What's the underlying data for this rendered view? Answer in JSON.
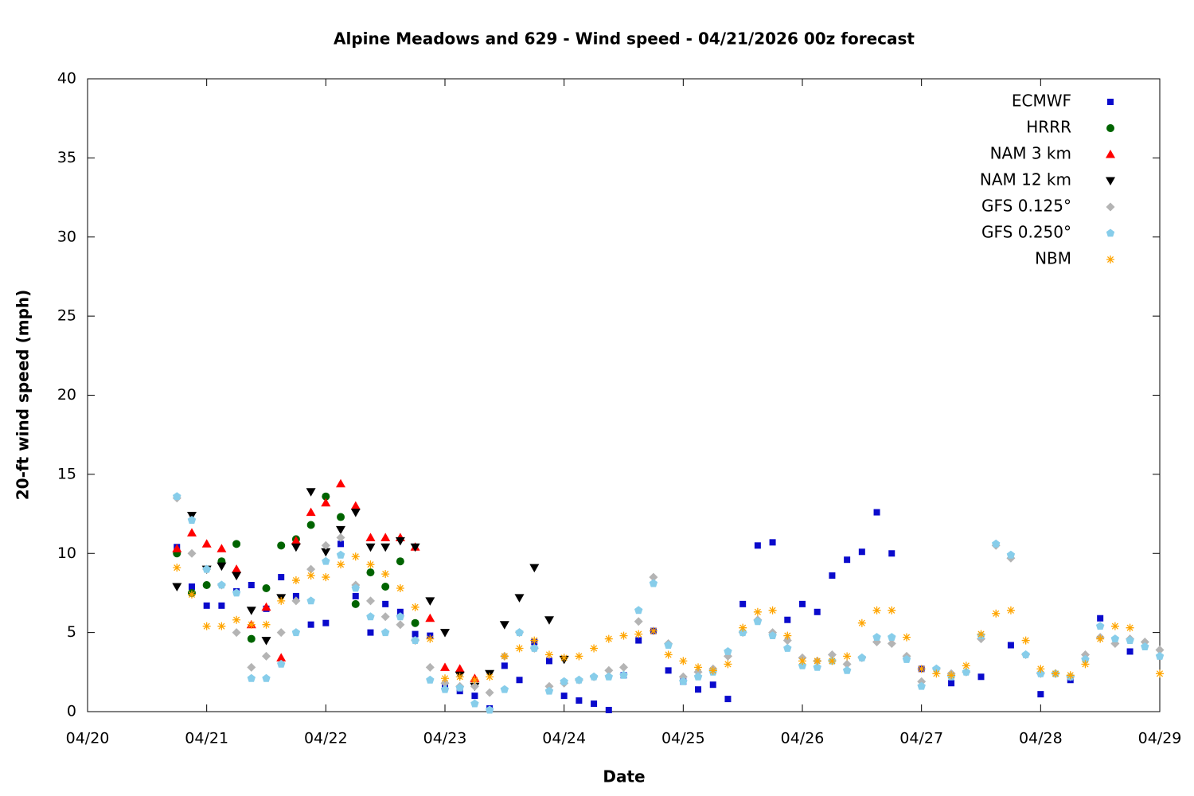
{
  "chart_data": {
    "type": "scatter",
    "title": "Alpine Meadows and 629 - Wind speed - 04/21/2026 00z forecast",
    "x_label": "Date",
    "y_label": "20-ft wind speed (mph)",
    "xlim": [
      "04/20",
      "04/29"
    ],
    "xticks": [
      "04/20",
      "04/21",
      "04/22",
      "04/23",
      "04/24",
      "04/25",
      "04/26",
      "04/27",
      "04/28",
      "04/29"
    ],
    "ylim": [
      0,
      40
    ],
    "yticks": [
      0,
      5,
      10,
      15,
      20,
      25,
      30,
      35,
      40
    ],
    "grid": false,
    "legend": "top-right",
    "series": [
      {
        "name": "ECMWF",
        "color": "#0a0acc",
        "marker": "square",
        "x": [
          "04/20 18:00",
          "04/20 21:00",
          "04/21 00:00",
          "04/21 03:00",
          "04/21 06:00",
          "04/21 09:00",
          "04/21 12:00",
          "04/21 15:00",
          "04/21 18:00",
          "04/21 21:00",
          "04/22 00:00",
          "04/22 03:00",
          "04/22 06:00",
          "04/22 09:00",
          "04/22 12:00",
          "04/22 15:00",
          "04/22 18:00",
          "04/22 21:00",
          "04/23 00:00",
          "04/23 03:00",
          "04/23 06:00",
          "04/23 09:00",
          "04/23 12:00",
          "04/23 15:00",
          "04/23 18:00",
          "04/23 21:00",
          "04/24 00:00",
          "04/24 03:00",
          "04/24 06:00",
          "04/24 09:00",
          "04/24 12:00",
          "04/24 15:00",
          "04/24 18:00",
          "04/24 21:00",
          "04/25 00:00",
          "04/25 03:00",
          "04/25 06:00",
          "04/25 09:00",
          "04/25 12:00",
          "04/25 15:00",
          "04/25 18:00",
          "04/25 21:00",
          "04/26 00:00",
          "04/26 03:00",
          "04/26 06:00",
          "04/26 09:00",
          "04/26 12:00",
          "04/26 15:00",
          "04/26 18:00",
          "04/27 00:00",
          "04/27 06:00",
          "04/27 12:00",
          "04/27 18:00",
          "04/28 00:00",
          "04/28 06:00",
          "04/28 12:00",
          "04/28 18:00"
        ],
        "values": [
          10.4,
          7.9,
          6.7,
          6.7,
          7.6,
          8.0,
          6.5,
          8.5,
          7.3,
          5.5,
          5.6,
          10.6,
          7.3,
          5.0,
          6.8,
          6.3,
          4.9,
          4.8,
          1.6,
          1.3,
          1.0,
          0.2,
          2.9,
          2.0,
          4.4,
          3.2,
          1.0,
          0.7,
          0.5,
          0.1,
          2.3,
          4.5,
          5.1,
          2.6,
          1.9,
          1.4,
          1.7,
          0.8,
          6.8,
          10.5,
          10.7,
          5.8,
          6.8,
          6.3,
          8.6,
          9.6,
          10.1,
          12.6,
          10.0,
          2.7,
          1.8,
          2.2,
          4.2,
          1.1,
          2.0,
          5.9,
          3.8
        ]
      },
      {
        "name": "HRRR",
        "color": "#006400",
        "marker": "circle",
        "x": [
          "04/20 18:00",
          "04/20 21:00",
          "04/21 00:00",
          "04/21 03:00",
          "04/21 06:00",
          "04/21 09:00",
          "04/21 12:00",
          "04/21 15:00",
          "04/21 18:00",
          "04/21 21:00",
          "04/22 00:00",
          "04/22 03:00",
          "04/22 06:00",
          "04/22 09:00",
          "04/22 12:00",
          "04/22 15:00",
          "04/22 18:00"
        ],
        "values": [
          10.0,
          7.5,
          8.0,
          9.5,
          10.6,
          4.6,
          7.8,
          10.5,
          10.9,
          11.8,
          13.6,
          12.3,
          6.8,
          8.8,
          7.9,
          9.5,
          5.6
        ]
      },
      {
        "name": "NAM 3 km",
        "color": "#ff0000",
        "marker": "triangle-up",
        "x": [
          "04/20 18:00",
          "04/20 21:00",
          "04/21 00:00",
          "04/21 03:00",
          "04/21 06:00",
          "04/21 09:00",
          "04/21 12:00",
          "04/21 15:00",
          "04/21 18:00",
          "04/21 21:00",
          "04/22 00:00",
          "04/22 03:00",
          "04/22 06:00",
          "04/22 09:00",
          "04/22 12:00",
          "04/22 15:00",
          "04/22 18:00",
          "04/22 21:00",
          "04/23 00:00",
          "04/23 03:00",
          "04/23 06:00"
        ],
        "values": [
          10.3,
          11.3,
          10.6,
          10.3,
          9.0,
          5.5,
          6.6,
          3.4,
          10.8,
          12.6,
          13.2,
          14.4,
          13.0,
          11.0,
          11.0,
          11.0,
          10.4,
          5.9,
          2.8,
          2.7,
          2.1
        ]
      },
      {
        "name": "NAM 12 km",
        "color": "#000000",
        "marker": "triangle-down",
        "x": [
          "04/20 18:00",
          "04/20 21:00",
          "04/21 00:00",
          "04/21 03:00",
          "04/21 06:00",
          "04/21 09:00",
          "04/21 12:00",
          "04/21 15:00",
          "04/21 18:00",
          "04/21 21:00",
          "04/22 00:00",
          "04/22 03:00",
          "04/22 06:00",
          "04/22 09:00",
          "04/22 12:00",
          "04/22 15:00",
          "04/22 18:00",
          "04/22 21:00",
          "04/23 00:00",
          "04/23 03:00",
          "04/23 06:00",
          "04/23 09:00",
          "04/23 12:00",
          "04/23 15:00",
          "04/23 18:00",
          "04/23 21:00",
          "04/24 00:00"
        ],
        "values": [
          7.9,
          12.4,
          9.0,
          9.2,
          8.6,
          6.4,
          4.5,
          7.2,
          10.4,
          13.9,
          10.1,
          11.5,
          12.6,
          10.4,
          10.4,
          10.8,
          10.4,
          7.0,
          5.0,
          2.3,
          1.6,
          2.4,
          5.5,
          7.2,
          9.1,
          5.8,
          3.3
        ]
      },
      {
        "name": "GFS 0.125°",
        "color": "#b4b4b4",
        "marker": "diamond",
        "x": [
          "04/20 18:00",
          "04/20 21:00",
          "04/21 00:00",
          "04/21 03:00",
          "04/21 06:00",
          "04/21 09:00",
          "04/21 12:00",
          "04/21 15:00",
          "04/21 18:00",
          "04/21 21:00",
          "04/22 00:00",
          "04/22 03:00",
          "04/22 06:00",
          "04/22 09:00",
          "04/22 12:00",
          "04/22 15:00",
          "04/22 18:00",
          "04/22 21:00",
          "04/23 00:00",
          "04/23 03:00",
          "04/23 06:00",
          "04/23 09:00",
          "04/23 12:00",
          "04/23 15:00",
          "04/23 18:00",
          "04/23 21:00",
          "04/24 00:00",
          "04/24 03:00",
          "04/24 06:00",
          "04/24 09:00",
          "04/24 12:00",
          "04/24 15:00",
          "04/24 18:00",
          "04/24 21:00",
          "04/25 00:00",
          "04/25 03:00",
          "04/25 06:00",
          "04/25 09:00",
          "04/25 12:00",
          "04/25 15:00",
          "04/25 18:00",
          "04/25 21:00",
          "04/26 00:00",
          "04/26 03:00",
          "04/26 06:00",
          "04/26 09:00",
          "04/26 12:00",
          "04/26 15:00",
          "04/26 18:00",
          "04/26 21:00",
          "04/27 00:00",
          "04/27 03:00",
          "04/27 06:00",
          "04/27 09:00",
          "04/27 12:00",
          "04/27 15:00",
          "04/27 18:00",
          "04/27 21:00",
          "04/28 00:00",
          "04/28 03:00",
          "04/28 06:00",
          "04/28 09:00",
          "04/28 12:00",
          "04/28 15:00",
          "04/28 18:00",
          "04/28 21:00",
          "04/29 00:00"
        ],
        "values": [
          13.5,
          10.0,
          9.0,
          8.0,
          5.0,
          2.8,
          3.5,
          5.0,
          7.0,
          9.0,
          10.5,
          11.0,
          8.0,
          7.0,
          6.0,
          5.5,
          4.5,
          2.8,
          1.8,
          1.6,
          1.6,
          1.2,
          3.5,
          5.0,
          4.0,
          1.6,
          1.8,
          2.0,
          2.2,
          2.6,
          2.8,
          5.7,
          8.5,
          4.3,
          2.2,
          2.5,
          2.7,
          3.5,
          5.0,
          5.8,
          5.0,
          4.5,
          3.4,
          3.2,
          3.6,
          3.0,
          3.4,
          4.4,
          4.3,
          3.5,
          1.9,
          2.7,
          2.4,
          2.5,
          4.6,
          10.5,
          9.7,
          3.6,
          2.4,
          2.4,
          2.2,
          3.6,
          4.7,
          4.3,
          4.6,
          4.4,
          3.9
        ]
      },
      {
        "name": "GFS 0.250°",
        "color": "#87cdea",
        "marker": "pentagon",
        "x": [
          "04/20 18:00",
          "04/20 21:00",
          "04/21 00:00",
          "04/21 03:00",
          "04/21 06:00",
          "04/21 09:00",
          "04/21 12:00",
          "04/21 15:00",
          "04/21 18:00",
          "04/21 21:00",
          "04/22 00:00",
          "04/22 03:00",
          "04/22 06:00",
          "04/22 09:00",
          "04/22 12:00",
          "04/22 15:00",
          "04/22 18:00",
          "04/22 21:00",
          "04/23 00:00",
          "04/23 03:00",
          "04/23 06:00",
          "04/23 09:00",
          "04/23 12:00",
          "04/23 15:00",
          "04/23 18:00",
          "04/23 21:00",
          "04/24 00:00",
          "04/24 03:00",
          "04/24 06:00",
          "04/24 09:00",
          "04/24 12:00",
          "04/24 15:00",
          "04/24 18:00",
          "04/24 21:00",
          "04/25 00:00",
          "04/25 03:00",
          "04/25 06:00",
          "04/25 09:00",
          "04/25 12:00",
          "04/25 15:00",
          "04/25 18:00",
          "04/25 21:00",
          "04/26 00:00",
          "04/26 03:00",
          "04/26 06:00",
          "04/26 09:00",
          "04/26 12:00",
          "04/26 15:00",
          "04/26 18:00",
          "04/26 21:00",
          "04/27 00:00",
          "04/27 03:00",
          "04/27 06:00",
          "04/27 09:00",
          "04/27 12:00",
          "04/27 15:00",
          "04/27 18:00",
          "04/27 21:00",
          "04/28 00:00",
          "04/28 03:00",
          "04/28 06:00",
          "04/28 09:00",
          "04/28 12:00",
          "04/28 15:00",
          "04/28 18:00",
          "04/28 21:00",
          "04/29 00:00"
        ],
        "values": [
          13.6,
          12.1,
          9.0,
          8.0,
          7.5,
          2.1,
          2.1,
          3.0,
          5.0,
          7.0,
          9.5,
          9.9,
          7.8,
          6.0,
          5.0,
          6.0,
          4.5,
          2.0,
          1.4,
          1.5,
          0.5,
          0.1,
          1.4,
          5.0,
          4.0,
          1.3,
          1.9,
          2.0,
          2.2,
          2.2,
          2.3,
          6.4,
          8.1,
          4.2,
          1.9,
          2.2,
          2.5,
          3.8,
          5.0,
          5.7,
          4.8,
          4.0,
          2.9,
          2.8,
          3.2,
          2.6,
          3.4,
          4.7,
          4.7,
          3.3,
          1.6,
          2.7,
          2.2,
          2.5,
          4.8,
          10.6,
          9.9,
          3.6,
          2.4,
          2.4,
          2.2,
          3.3,
          5.4,
          4.6,
          4.5,
          4.1,
          3.5
        ]
      },
      {
        "name": "NBM",
        "color": "#ffa500",
        "marker": "star",
        "x": [
          "04/20 18:00",
          "04/20 21:00",
          "04/21 00:00",
          "04/21 03:00",
          "04/21 06:00",
          "04/21 09:00",
          "04/21 12:00",
          "04/21 15:00",
          "04/21 18:00",
          "04/21 21:00",
          "04/22 00:00",
          "04/22 03:00",
          "04/22 06:00",
          "04/22 09:00",
          "04/22 12:00",
          "04/22 15:00",
          "04/22 18:00",
          "04/22 21:00",
          "04/23 00:00",
          "04/23 03:00",
          "04/23 06:00",
          "04/23 09:00",
          "04/23 12:00",
          "04/23 15:00",
          "04/23 18:00",
          "04/23 21:00",
          "04/24 00:00",
          "04/24 03:00",
          "04/24 06:00",
          "04/24 09:00",
          "04/24 12:00",
          "04/24 15:00",
          "04/24 18:00",
          "04/24 21:00",
          "04/25 00:00",
          "04/25 03:00",
          "04/25 06:00",
          "04/25 09:00",
          "04/25 12:00",
          "04/25 15:00",
          "04/25 18:00",
          "04/25 21:00",
          "04/26 00:00",
          "04/26 03:00",
          "04/26 06:00",
          "04/26 09:00",
          "04/26 12:00",
          "04/26 15:00",
          "04/26 18:00",
          "04/26 21:00",
          "04/27 00:00",
          "04/27 03:00",
          "04/27 06:00",
          "04/27 09:00",
          "04/27 12:00",
          "04/27 15:00",
          "04/27 18:00",
          "04/27 21:00",
          "04/28 00:00",
          "04/28 03:00",
          "04/28 06:00",
          "04/28 09:00",
          "04/28 12:00",
          "04/28 15:00",
          "04/28 18:00",
          "04/29 00:00"
        ],
        "values": [
          9.1,
          7.4,
          5.4,
          5.4,
          5.8,
          5.5,
          5.5,
          7.0,
          8.3,
          8.6,
          8.5,
          9.3,
          9.8,
          9.3,
          8.7,
          7.8,
          6.6,
          4.6,
          2.1,
          2.2,
          2.0,
          2.2,
          3.5,
          4.0,
          4.5,
          3.6,
          3.4,
          3.5,
          4.0,
          4.6,
          4.8,
          4.9,
          5.1,
          3.6,
          3.2,
          2.8,
          2.6,
          3.0,
          5.3,
          6.3,
          6.4,
          4.8,
          3.2,
          3.2,
          3.2,
          3.5,
          5.6,
          6.4,
          6.4,
          4.7,
          2.7,
          2.4,
          2.3,
          2.9,
          4.9,
          6.2,
          6.4,
          4.5,
          2.7,
          2.4,
          2.3,
          3.0,
          4.6,
          5.4,
          5.3,
          2.4
        ]
      }
    ]
  }
}
